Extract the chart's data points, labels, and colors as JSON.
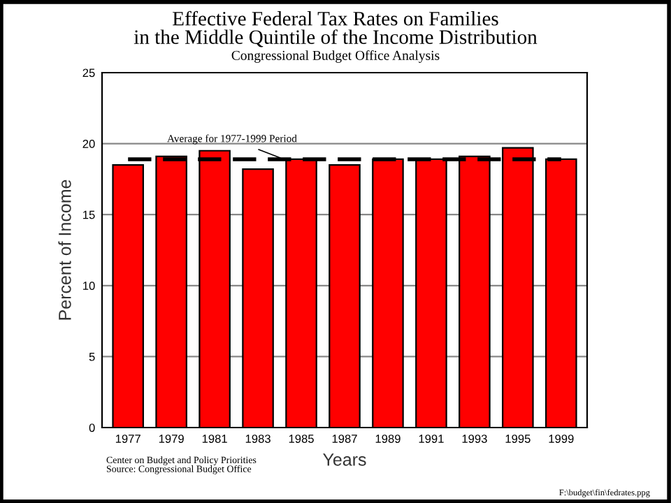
{
  "chart_data": {
    "type": "bar",
    "title": "Effective Federal Tax Rates on Families\nin the Middle Quintile of the Income Distribution",
    "subtitle": "Congressional Budget Office Analysis",
    "xlabel": "Years",
    "ylabel": "Percent of Income",
    "categories": [
      "1977",
      "1979",
      "1981",
      "1983",
      "1985",
      "1987",
      "1989",
      "1991",
      "1993",
      "1995",
      "1999"
    ],
    "values": [
      18.5,
      19.1,
      19.5,
      18.2,
      18.9,
      18.5,
      18.9,
      18.9,
      19.1,
      19.7,
      18.9
    ],
    "color": "#ff0000",
    "ylim": [
      0,
      25
    ],
    "yticks": [
      0,
      5,
      10,
      15,
      20,
      25
    ],
    "grid": "y",
    "legend": false,
    "ref_lines": [
      {
        "axis": "y",
        "value": 18.9,
        "label": "Average for 1977-1999 Period",
        "color": "#000000",
        "line_style": "dashed"
      }
    ],
    "annotations": [
      "Center on Budget and Policy Priorities\nSource: Congressional Budget Office",
      "F:\\budget\\fin\\fedrates.ppg"
    ]
  }
}
